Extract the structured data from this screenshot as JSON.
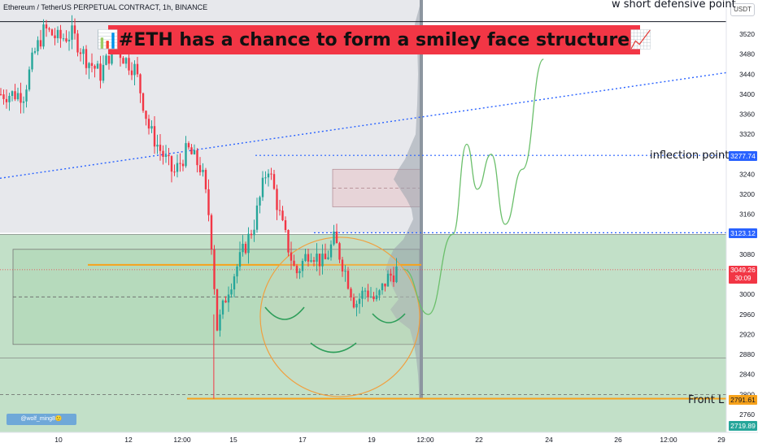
{
  "header": {
    "symbol_line": "Ethereum / TetherUS PERPETUAL CONTRACT, 1h, BINANCE"
  },
  "banner": {
    "text": "📊#ETH has a chance to form a smiley face structure📈"
  },
  "quote_button": "USDT",
  "watermark": "@wolf_ming8🙂",
  "annotations": {
    "short_defensive": "w short defensive point",
    "inflection": "inflection point",
    "front": "Front L"
  },
  "price_tags": {
    "inflection": {
      "value": "3277.74",
      "color": "#2962ff"
    },
    "resistance": {
      "value": "3123.12",
      "color": "#2962ff"
    },
    "current": {
      "value": "3049.26",
      "countdown": "30:09",
      "color": "#f23645"
    },
    "front": {
      "value": "2791.61",
      "color": "#f7a21b"
    },
    "low": {
      "value": "2719.89",
      "color": "#26a69a"
    }
  },
  "colors": {
    "up": "#26a69a",
    "down": "#f23645",
    "trend": "#2962ff",
    "level": "#f7a21b",
    "zone": "#8fc79a",
    "projection": "#6bbf6b"
  },
  "chart_data": {
    "type": "candlestick",
    "symbol": "ETHUSDT.P",
    "interval": "1h",
    "exchange": "BINANCE",
    "y_ticks": [
      3520,
      3480,
      3440,
      3400,
      3360,
      3320,
      3280,
      3240,
      3200,
      3160,
      3120,
      3080,
      3040,
      3000,
      2960,
      2920,
      2880,
      2840,
      2800,
      2760
    ],
    "y_range": [
      2710,
      3550
    ],
    "x_ticks": [
      "10",
      "12",
      "12:00",
      "15",
      "17",
      "19",
      "12:00",
      "22",
      "24",
      "26",
      "12:00",
      "29"
    ],
    "levels": {
      "short_defensive": 3545,
      "inflection_point": 3277.74,
      "resistance": 3123.12,
      "support": 3059,
      "current": 3049.26,
      "front_low": 2791.61,
      "low": 2719.89
    },
    "trendline": {
      "from": {
        "x": "10",
        "y": 3243
      },
      "to": {
        "x": "29",
        "y": 3443
      }
    },
    "zones": [
      {
        "name": "green-demand-zone",
        "top": 3120,
        "bottom": 2719.89
      },
      {
        "name": "consolidation-range",
        "top": 3090,
        "bottom": 2900
      },
      {
        "name": "supply-box",
        "top": 3250,
        "bottom": 3175
      }
    ],
    "price_path": [
      [
        9.0,
        3400
      ],
      [
        9.3,
        3480
      ],
      [
        9.6,
        3530
      ],
      [
        10.0,
        3510
      ],
      [
        10.4,
        3520
      ],
      [
        10.8,
        3470
      ],
      [
        11.2,
        3440
      ],
      [
        11.6,
        3500
      ],
      [
        11.9,
        3470
      ],
      [
        12.2,
        3450
      ],
      [
        12.6,
        3330
      ],
      [
        12.9,
        3290
      ],
      [
        13.3,
        3240
      ],
      [
        13.7,
        3290
      ],
      [
        14.1,
        3250
      ],
      [
        14.35,
        3140
      ],
      [
        14.55,
        2930
      ],
      [
        14.85,
        3010
      ],
      [
        15.2,
        3070
      ],
      [
        15.6,
        3140
      ],
      [
        16.0,
        3260
      ],
      [
        16.4,
        3140
      ],
      [
        16.8,
        3040
      ],
      [
        17.2,
        3090
      ],
      [
        17.6,
        3060
      ],
      [
        17.9,
        3110
      ],
      [
        18.2,
        3050
      ],
      [
        18.5,
        2980
      ],
      [
        18.8,
        3010
      ],
      [
        19.1,
        2985
      ],
      [
        19.4,
        3030
      ],
      [
        19.7,
        3049
      ]
    ],
    "projection": [
      [
        19.9,
        3050
      ],
      [
        20.6,
        2960
      ],
      [
        21.3,
        3120
      ],
      [
        21.7,
        3300
      ],
      [
        22.0,
        3210
      ],
      [
        22.4,
        3280
      ],
      [
        22.8,
        3140
      ],
      [
        23.3,
        3250
      ],
      [
        23.9,
        3470
      ]
    ]
  }
}
